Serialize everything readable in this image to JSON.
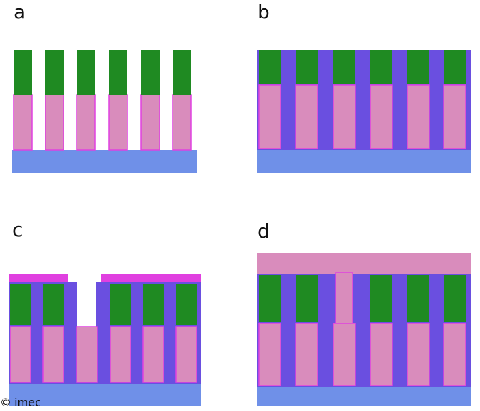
{
  "panels": [
    {
      "label": "a"
    },
    {
      "label": "b"
    },
    {
      "label": "c"
    },
    {
      "label": "d"
    }
  ],
  "copyright": "© imec"
}
